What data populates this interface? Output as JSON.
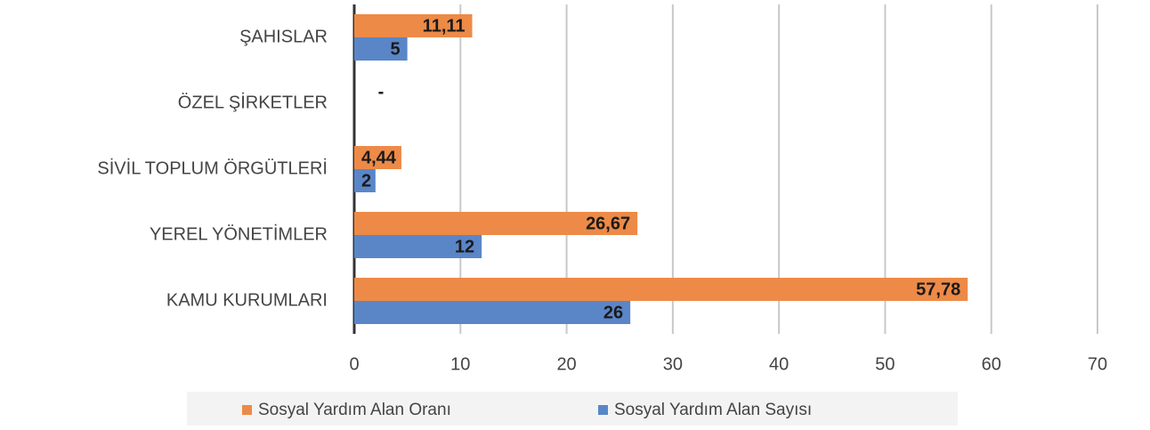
{
  "chart_data": {
    "type": "hbar",
    "categories": [
      "ŞAHISLAR",
      "ÖZEL ŞİRKETLER",
      "SİVİL TOPLUM ÖRGÜTLERİ",
      "YEREL YÖNETİMLER",
      "KAMU KURUMLARI"
    ],
    "series": [
      {
        "name": "Sosyal Yardım Alan Oranı",
        "color": "#ed8a47",
        "values": [
          11.11,
          0,
          4.44,
          26.67,
          57.78
        ],
        "value_labels": [
          "11,11",
          "-",
          "4,44",
          "26,67",
          "57,78"
        ]
      },
      {
        "name": "Sosyal Yardım Alan Sayısı",
        "color": "#5a86c8",
        "values": [
          5,
          null,
          2,
          12,
          26
        ],
        "value_labels": [
          "5",
          null,
          "2",
          "12",
          "26"
        ]
      }
    ],
    "xlim": [
      0,
      70
    ],
    "xticks": [
      0,
      10,
      20,
      30,
      40,
      50,
      60,
      70
    ],
    "grid": true,
    "legend": "bottom"
  }
}
